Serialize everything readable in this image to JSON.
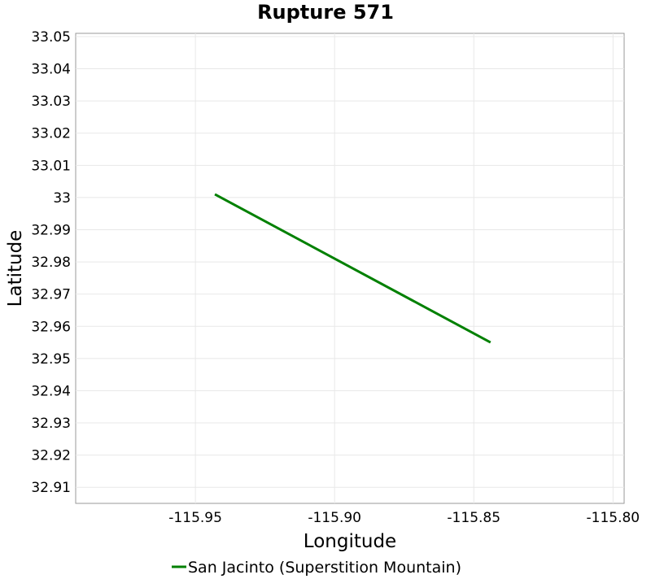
{
  "chart_data": {
    "type": "line",
    "title": "Rupture 571",
    "xlabel": "Longitude",
    "ylabel": "Latitude",
    "xlim": [
      -115.993,
      -115.796
    ],
    "ylim": [
      32.905,
      33.051
    ],
    "x_ticks": [
      -115.95,
      -115.9,
      -115.85,
      -115.8
    ],
    "x_tick_labels": [
      "-115.95",
      "-115.90",
      "-115.85",
      "-115.80"
    ],
    "y_ticks": [
      32.91,
      32.92,
      32.93,
      32.94,
      32.95,
      32.96,
      32.97,
      32.98,
      32.99,
      33.0,
      33.01,
      33.02,
      33.03,
      33.04,
      33.05
    ],
    "y_tick_labels": [
      "32.91",
      "32.92",
      "32.93",
      "32.94",
      "32.95",
      "32.96",
      "32.97",
      "32.98",
      "32.99",
      "33",
      "33.01",
      "33.02",
      "33.03",
      "33.04",
      "33.05"
    ],
    "grid": true,
    "legend_position": "bottom",
    "series": [
      {
        "name": "San Jacinto (Superstition Mountain)",
        "color": "#008000",
        "x": [
          -115.943,
          -115.844
        ],
        "y": [
          33.001,
          32.955
        ]
      }
    ]
  }
}
